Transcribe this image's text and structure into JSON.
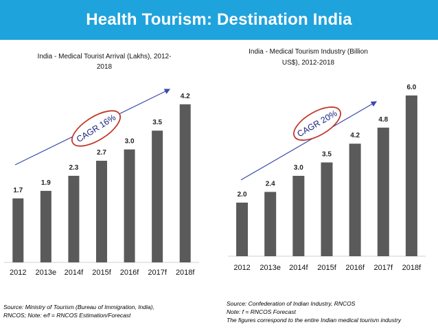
{
  "header": {
    "title": "Health Tourism: Destination India"
  },
  "chart_data": [
    {
      "type": "bar",
      "title_lines": [
        "India - Medical Tourist Arrival (Lakhs), 2012-",
        "2018"
      ],
      "categories": [
        "2012",
        "2013e",
        "2014f",
        "2015f",
        "2016f",
        "2017f",
        "2018f"
      ],
      "values": [
        1.7,
        1.9,
        2.3,
        2.7,
        3.0,
        3.5,
        4.2
      ],
      "value_labels": [
        "1.7",
        "1.9",
        "2.3",
        "2.7",
        "3.0",
        "3.5",
        "4.2"
      ],
      "annotation": "CAGR 16%",
      "ylim": [
        0,
        4.6
      ],
      "colors": {
        "bar": "#5a5a5a",
        "ellipse": "#c0392b",
        "arrow": "#3949ab"
      }
    },
    {
      "type": "bar",
      "title_lines": [
        "India - Medical Tourism Industry (Billion",
        "US$), 2012-2018"
      ],
      "categories": [
        "2012",
        "2013e",
        "2014f",
        "2015f",
        "2016f",
        "2017f",
        "2018f"
      ],
      "values": [
        2.0,
        2.4,
        3.0,
        3.5,
        4.2,
        4.8,
        6.0
      ],
      "value_labels": [
        "2.0",
        "2.4",
        "3.0",
        "3.5",
        "4.2",
        "4.8",
        "6.0"
      ],
      "annotation": "CAGR 20%",
      "ylim": [
        0,
        7.0
      ],
      "colors": {
        "bar": "#5a5a5a",
        "ellipse": "#c0392b",
        "arrow": "#3949ab"
      }
    }
  ],
  "sources": {
    "left": [
      "Source: Ministry of Tourism (Bureau of Immigration, India),",
      "RNCOS; Note: e/f = RNCOS Estimation/Forecast"
    ],
    "right": [
      "Source: Confederation of Indian Industry, RNCOS",
      "Note: f = RNCOS Forecast",
      "The figures correspond to the entire Indian medical tourism industry"
    ]
  }
}
